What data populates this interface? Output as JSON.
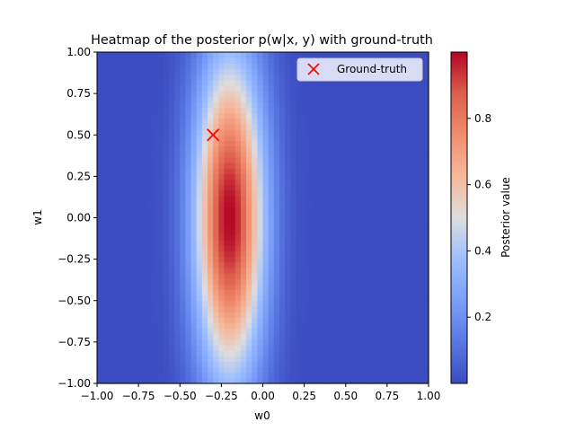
{
  "chart_data": {
    "type": "heatmap",
    "title": "Heatmap of the posterior p(w|x, y) with ground-truth",
    "xlabel": "w0",
    "ylabel": "w1",
    "xlim": [
      -1.0,
      1.0
    ],
    "ylim": [
      -1.0,
      1.0
    ],
    "xticks": [
      -1.0,
      -0.75,
      -0.5,
      -0.25,
      0.0,
      0.25,
      0.5,
      0.75,
      1.0
    ],
    "xtick_labels": [
      "−1.00",
      "−0.75",
      "−0.50",
      "−0.25",
      "0.00",
      "0.25",
      "0.50",
      "0.75",
      "1.00"
    ],
    "yticks": [
      -1.0,
      -0.75,
      -0.5,
      -0.25,
      0.0,
      0.25,
      0.5,
      0.75,
      1.0
    ],
    "ytick_labels": [
      "−1.00",
      "−0.75",
      "−0.50",
      "−0.25",
      "0.00",
      "0.25",
      "0.50",
      "0.75",
      "1.00"
    ],
    "posterior": {
      "peak": [
        -0.2,
        0.0
      ],
      "sigma_w0": 0.15,
      "sigma_w1": 0.7,
      "max_value": 1.0
    },
    "colormap": "coolwarm",
    "colorbar": {
      "label": "Posterior value",
      "range": [
        0.0,
        1.0
      ],
      "ticks": [
        0.2,
        0.4,
        0.6,
        0.8
      ],
      "tick_labels": [
        "0.2",
        "0.4",
        "0.6",
        "0.8"
      ]
    },
    "markers": [
      {
        "name": "Ground-truth",
        "x": -0.3,
        "y": 0.5,
        "symbol": "x",
        "color": "#ff0000"
      }
    ],
    "legend": {
      "position": "top-right",
      "entries": [
        "Ground-truth"
      ]
    },
    "grid": false
  }
}
